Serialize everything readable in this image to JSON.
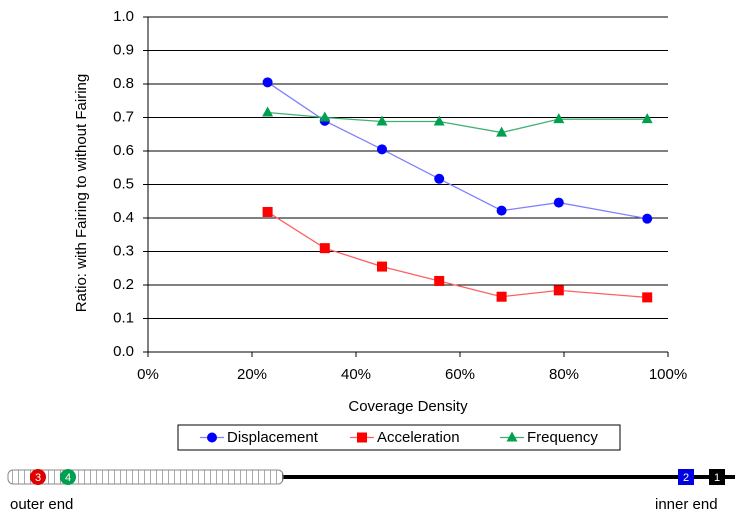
{
  "chart_data": {
    "type": "line",
    "x_label": "Coverage Density",
    "y_label": "Ratio: with Fairing to without Fairing",
    "x": [
      23,
      34,
      45,
      56,
      68,
      79,
      96
    ],
    "series": [
      {
        "name": "Displacement",
        "color": "#0000ff",
        "line_color": "#8080ff",
        "marker": "circle",
        "values": [
          0.805,
          0.69,
          0.605,
          0.517,
          0.422,
          0.446,
          0.398
        ]
      },
      {
        "name": "Acceleration",
        "color": "#ff0000",
        "line_color": "#ff6060",
        "marker": "square",
        "values": [
          0.418,
          0.31,
          0.255,
          0.212,
          0.165,
          0.184,
          0.163
        ]
      },
      {
        "name": "Frequency",
        "color": "#00a050",
        "line_color": "#40b070",
        "marker": "triangle",
        "values": [
          0.715,
          0.7,
          0.688,
          0.688,
          0.655,
          0.695,
          0.695
        ]
      }
    ],
    "xlim": [
      0,
      100
    ],
    "xticks": [
      {
        "value": 0,
        "label": "0%"
      },
      {
        "value": 20,
        "label": "20%"
      },
      {
        "value": 40,
        "label": "40%"
      },
      {
        "value": 60,
        "label": "60%"
      },
      {
        "value": 80,
        "label": "80%"
      },
      {
        "value": 100,
        "label": "100%"
      }
    ],
    "ylim": [
      0,
      1
    ],
    "yticks": [
      {
        "value": 0,
        "label": "0.0"
      },
      0.1,
      0.2,
      0.3,
      0.4,
      0.5,
      0.6,
      0.7,
      0.8,
      0.9,
      {
        "value": 1,
        "label": "1.0"
      }
    ],
    "grid": true,
    "legend": "bottom"
  },
  "diagram": {
    "markers": [
      {
        "label": "3",
        "color": "#e00000"
      },
      {
        "label": "4",
        "color": "#00a050"
      },
      {
        "label": "2",
        "color": "#0000e0"
      },
      {
        "label": "1",
        "color": "#000000"
      }
    ],
    "outer_label": "outer end",
    "inner_label": "inner end"
  }
}
